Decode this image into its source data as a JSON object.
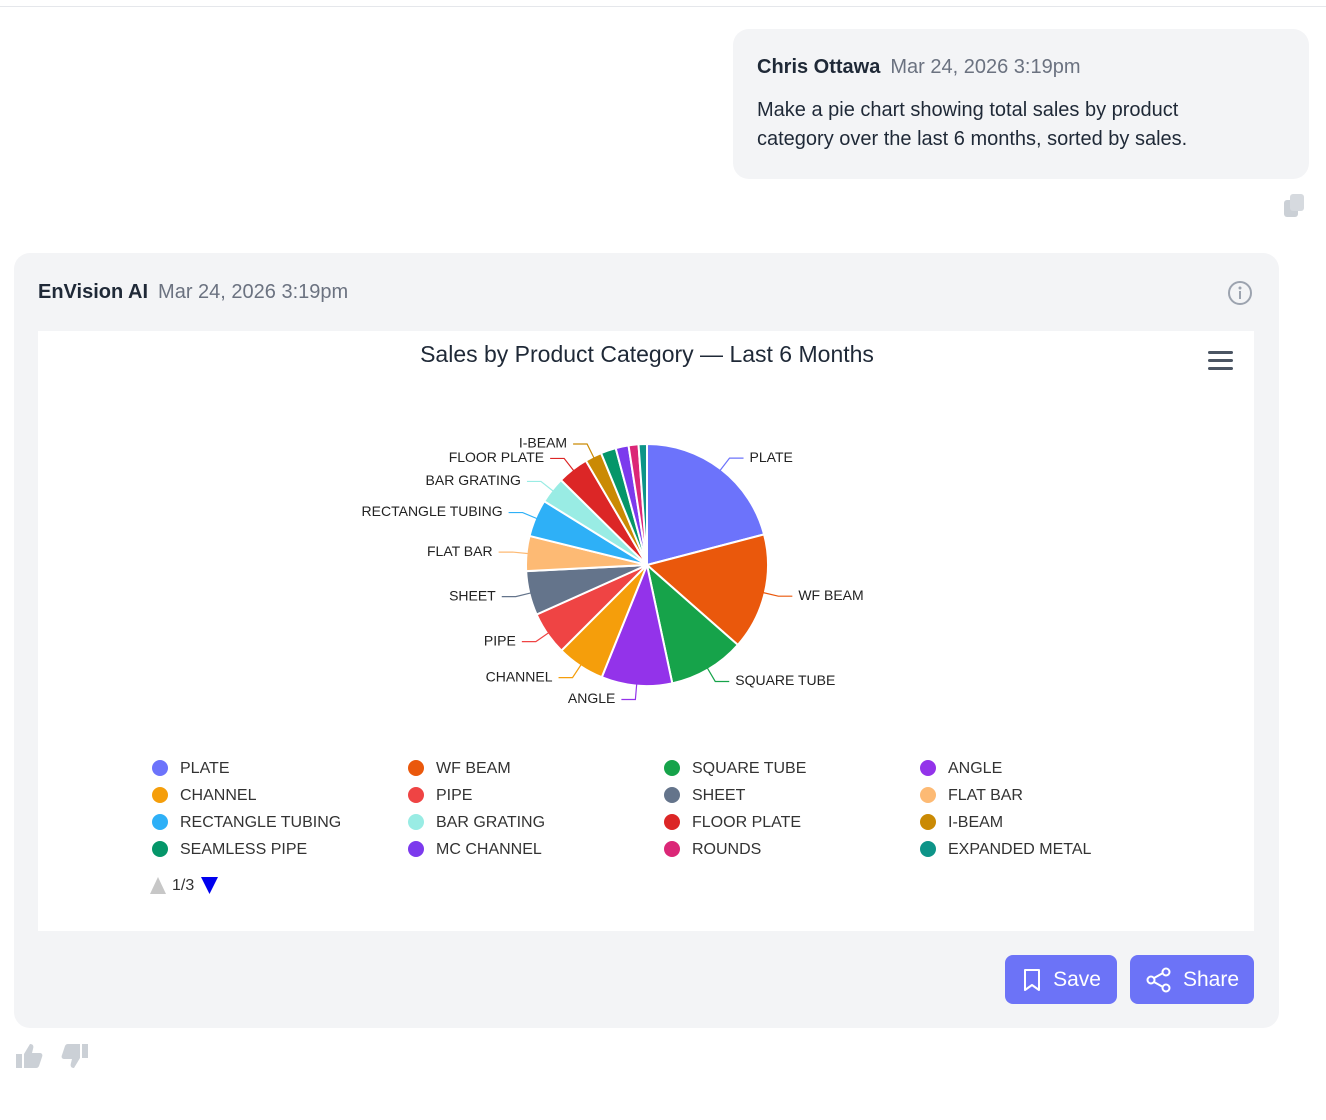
{
  "user_message": {
    "author": "Chris Ottawa",
    "time": "Mar 24, 2026 3:19pm",
    "text": "Make a pie chart showing total sales by product category over the last 6 months, sorted by sales."
  },
  "ai_message": {
    "author": "EnVision AI",
    "time": "Mar 24, 2026 3:19pm",
    "buttons": [
      "Save",
      "Share"
    ]
  },
  "chart_data": {
    "type": "pie",
    "title": "Sales by Product Category — Last 6 Months",
    "categories": [
      "PLATE",
      "WF BEAM",
      "SQUARE TUBE",
      "ANGLE",
      "CHANNEL",
      "PIPE",
      "SHEET",
      "FLAT BAR",
      "RECTANGLE TUBING",
      "BAR GRATING",
      "FLOOR PLATE",
      "I-BEAM",
      "SEAMLESS PIPE",
      "MC CHANNEL",
      "ROUNDS",
      "EXPANDED METAL"
    ],
    "values": [
      20.6,
      15.3,
      10,
      9.3,
      6.3,
      5.7,
      5.8,
      4.6,
      4.9,
      3.5,
      4.1,
      2.2,
      2,
      1.7,
      1.3,
      1.1
    ],
    "colors": [
      "#6c73fb",
      "#ea580c",
      "#16a34a",
      "#9333ea",
      "#f59e0b",
      "#ef4444",
      "#64748b",
      "#fdba74",
      "#2eb0f7",
      "#99ece4",
      "#dc2626",
      "#ca8a04",
      "#059669",
      "#7c3aed",
      "#db2777",
      "#0d9488"
    ],
    "legend_page": "1/3"
  }
}
